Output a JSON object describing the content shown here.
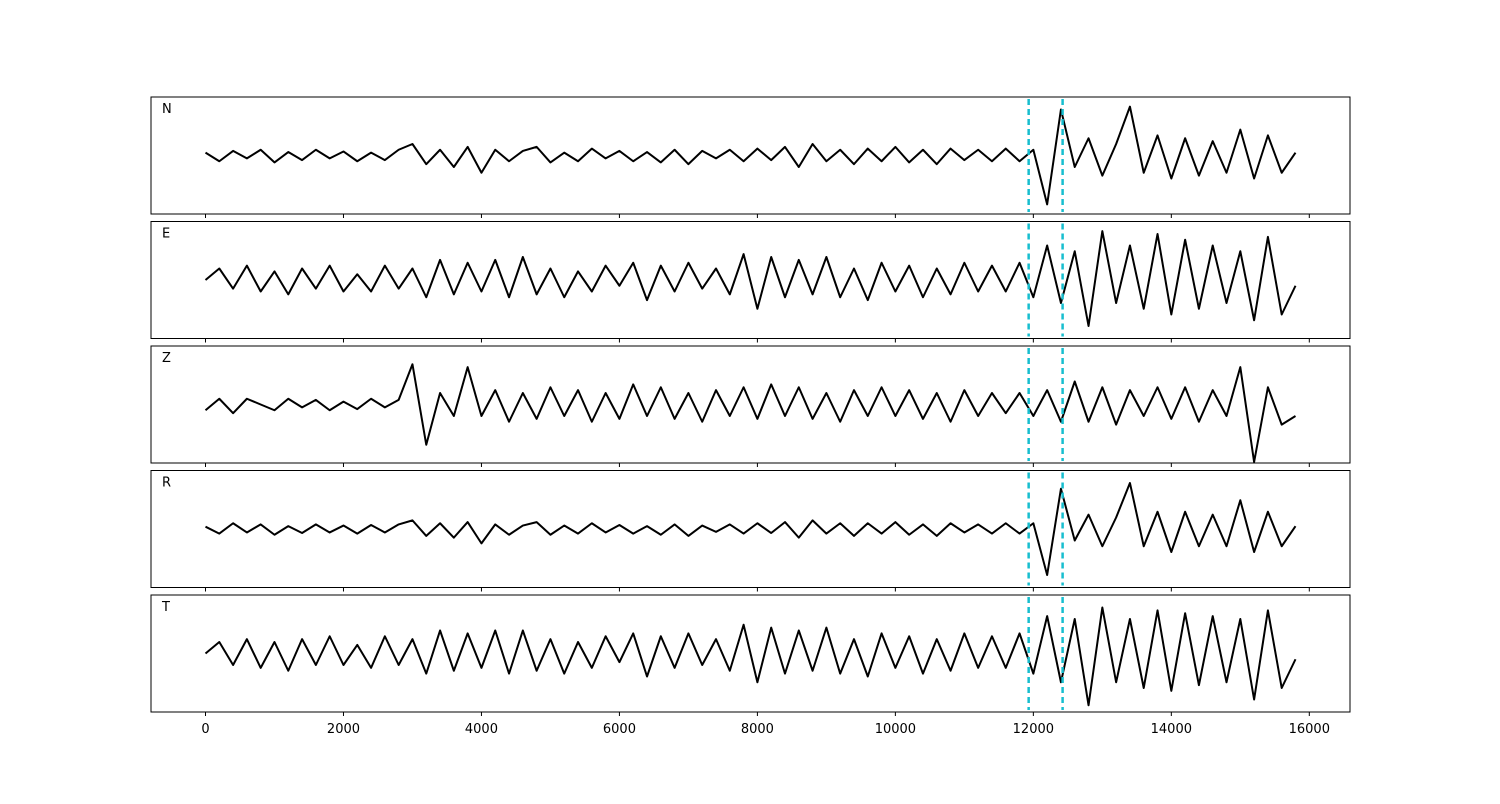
{
  "chart_data": {
    "type": "line",
    "x": [
      0,
      200,
      400,
      600,
      800,
      1000,
      1200,
      1400,
      1600,
      1800,
      2000,
      2200,
      2400,
      2600,
      2800,
      3000,
      3200,
      3400,
      3600,
      3800,
      4000,
      4200,
      4400,
      4600,
      4800,
      5000,
      5200,
      5400,
      5600,
      5800,
      6000,
      6200,
      6400,
      6600,
      6800,
      7000,
      7200,
      7400,
      7600,
      7800,
      8000,
      8200,
      8400,
      8600,
      8800,
      9000,
      9200,
      9400,
      9600,
      9800,
      10000,
      10200,
      10400,
      10600,
      10800,
      11000,
      11200,
      11400,
      11600,
      11800,
      12000,
      12200,
      12400,
      12600,
      12800,
      13000,
      13200,
      13400,
      13600,
      13800,
      14000,
      14200,
      14400,
      14600,
      14800,
      15000,
      15200,
      15400,
      15600,
      15800
    ],
    "xlim": [
      -790,
      16590
    ],
    "xticks": [
      0,
      2000,
      4000,
      6000,
      8000,
      10000,
      12000,
      14000,
      16000
    ],
    "ylim": [
      -1,
      1
    ],
    "series": [
      {
        "name": "N",
        "color": "#000000",
        "values": [
          0.05,
          -0.1,
          0.08,
          -0.05,
          0.1,
          -0.12,
          0.06,
          -0.08,
          0.1,
          -0.05,
          0.07,
          -0.1,
          0.05,
          -0.08,
          0.1,
          0.2,
          -0.15,
          0.1,
          -0.2,
          0.15,
          -0.3,
          0.1,
          -0.1,
          0.08,
          0.15,
          -0.12,
          0.05,
          -0.1,
          0.12,
          -0.05,
          0.08,
          -0.1,
          0.06,
          -0.12,
          0.1,
          -0.15,
          0.08,
          -0.05,
          0.1,
          -0.1,
          0.12,
          -0.08,
          0.15,
          -0.2,
          0.2,
          -0.1,
          0.1,
          -0.15,
          0.12,
          -0.1,
          0.15,
          -0.12,
          0.1,
          -0.15,
          0.12,
          -0.08,
          0.1,
          -0.1,
          0.12,
          -0.1,
          0.1,
          -0.85,
          0.8,
          -0.2,
          0.3,
          -0.35,
          0.2,
          0.85,
          -0.3,
          0.35,
          -0.4,
          0.3,
          -0.35,
          0.25,
          -0.3,
          0.45,
          -0.4,
          0.35,
          -0.3,
          0.05
        ]
      },
      {
        "name": "E",
        "color": "#000000",
        "values": [
          0.0,
          0.2,
          -0.15,
          0.25,
          -0.2,
          0.15,
          -0.25,
          0.2,
          -0.15,
          0.25,
          -0.2,
          0.1,
          -0.2,
          0.25,
          -0.15,
          0.2,
          -0.3,
          0.35,
          -0.25,
          0.3,
          -0.2,
          0.35,
          -0.3,
          0.4,
          -0.25,
          0.2,
          -0.3,
          0.15,
          -0.2,
          0.25,
          -0.1,
          0.3,
          -0.35,
          0.25,
          -0.2,
          0.3,
          -0.15,
          0.2,
          -0.25,
          0.45,
          -0.5,
          0.4,
          -0.3,
          0.35,
          -0.25,
          0.4,
          -0.3,
          0.2,
          -0.35,
          0.3,
          -0.2,
          0.25,
          -0.3,
          0.2,
          -0.25,
          0.3,
          -0.2,
          0.25,
          -0.2,
          0.3,
          -0.3,
          0.6,
          -0.4,
          0.5,
          -0.8,
          0.85,
          -0.4,
          0.6,
          -0.5,
          0.8,
          -0.6,
          0.7,
          -0.5,
          0.6,
          -0.4,
          0.5,
          -0.7,
          0.75,
          -0.6,
          -0.1
        ]
      },
      {
        "name": "Z",
        "color": "#000000",
        "values": [
          -0.1,
          0.1,
          -0.15,
          0.1,
          0.0,
          -0.1,
          0.1,
          -0.05,
          0.08,
          -0.1,
          0.05,
          -0.08,
          0.1,
          -0.05,
          0.08,
          0.7,
          -0.7,
          0.2,
          -0.2,
          0.65,
          -0.2,
          0.25,
          -0.3,
          0.2,
          -0.25,
          0.3,
          -0.2,
          0.25,
          -0.3,
          0.2,
          -0.25,
          0.35,
          -0.2,
          0.3,
          -0.25,
          0.2,
          -0.3,
          0.25,
          -0.2,
          0.3,
          -0.25,
          0.35,
          -0.2,
          0.3,
          -0.25,
          0.2,
          -0.3,
          0.25,
          -0.2,
          0.3,
          -0.2,
          0.25,
          -0.25,
          0.2,
          -0.3,
          0.25,
          -0.2,
          0.2,
          -0.15,
          0.2,
          -0.2,
          0.25,
          -0.3,
          0.4,
          -0.3,
          0.3,
          -0.35,
          0.25,
          -0.2,
          0.3,
          -0.25,
          0.3,
          -0.3,
          0.25,
          -0.2,
          0.65,
          -1.0,
          0.3,
          -0.35,
          -0.2
        ]
      },
      {
        "name": "R",
        "color": "#000000",
        "values": [
          0.04,
          -0.08,
          0.1,
          -0.06,
          0.08,
          -0.1,
          0.05,
          -0.07,
          0.08,
          -0.06,
          0.06,
          -0.08,
          0.07,
          -0.06,
          0.08,
          0.15,
          -0.12,
          0.1,
          -0.15,
          0.12,
          -0.25,
          0.08,
          -0.1,
          0.06,
          0.12,
          -0.1,
          0.06,
          -0.08,
          0.1,
          -0.06,
          0.07,
          -0.08,
          0.05,
          -0.1,
          0.08,
          -0.12,
          0.06,
          -0.05,
          0.08,
          -0.08,
          0.1,
          -0.07,
          0.12,
          -0.15,
          0.15,
          -0.08,
          0.1,
          -0.12,
          0.1,
          -0.08,
          0.12,
          -0.1,
          0.08,
          -0.12,
          0.1,
          -0.06,
          0.08,
          -0.08,
          0.1,
          -0.08,
          0.1,
          -0.8,
          0.7,
          -0.2,
          0.25,
          -0.3,
          0.2,
          0.8,
          -0.3,
          0.3,
          -0.4,
          0.3,
          -0.3,
          0.25,
          -0.3,
          0.5,
          -0.4,
          0.3,
          -0.3,
          0.05
        ]
      },
      {
        "name": "T",
        "color": "#000000",
        "values": [
          0.0,
          0.2,
          -0.2,
          0.25,
          -0.25,
          0.2,
          -0.3,
          0.25,
          -0.2,
          0.3,
          -0.2,
          0.15,
          -0.25,
          0.3,
          -0.2,
          0.25,
          -0.35,
          0.4,
          -0.3,
          0.35,
          -0.25,
          0.4,
          -0.35,
          0.4,
          -0.3,
          0.25,
          -0.35,
          0.2,
          -0.25,
          0.3,
          -0.15,
          0.35,
          -0.4,
          0.3,
          -0.25,
          0.35,
          -0.2,
          0.25,
          -0.3,
          0.5,
          -0.5,
          0.45,
          -0.35,
          0.4,
          -0.3,
          0.45,
          -0.35,
          0.25,
          -0.4,
          0.35,
          -0.25,
          0.3,
          -0.35,
          0.25,
          -0.3,
          0.35,
          -0.25,
          0.3,
          -0.25,
          0.35,
          -0.35,
          0.65,
          -0.5,
          0.6,
          -0.9,
          0.8,
          -0.5,
          0.6,
          -0.6,
          0.75,
          -0.65,
          0.7,
          -0.55,
          0.65,
          -0.5,
          0.6,
          -0.8,
          0.75,
          -0.6,
          -0.1
        ]
      }
    ],
    "vlines": [
      11932,
      12424
    ],
    "vline_color": "#17becf"
  }
}
